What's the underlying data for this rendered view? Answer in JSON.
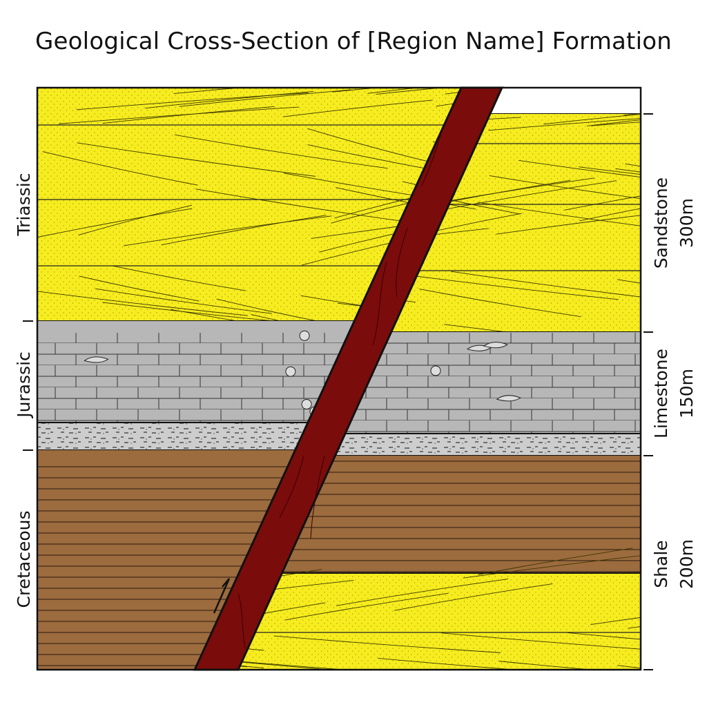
{
  "title": "Geological Cross-Section of [Region Name] Formation",
  "periods": [
    {
      "name": "Triassic"
    },
    {
      "name": "Jurassic"
    },
    {
      "name": "Cretaceous"
    }
  ],
  "units": [
    {
      "rock": "Sandstone",
      "thickness": "300m"
    },
    {
      "rock": "Limestone",
      "thickness": "150m"
    },
    {
      "rock": "Shale",
      "thickness": "200m"
    }
  ],
  "colors": {
    "sandstone": "#f6ec1f",
    "limestone": "#b7b7b7",
    "shaly_limestone": "#cdcdcd",
    "shale": "#9c6b3e",
    "fault": "#7b0c0c",
    "outline": "#111111"
  },
  "features": [
    "fault-zone",
    "fault-motion-arrow",
    "fossils-in-limestone",
    "cross-bedding-in-sandstone"
  ]
}
